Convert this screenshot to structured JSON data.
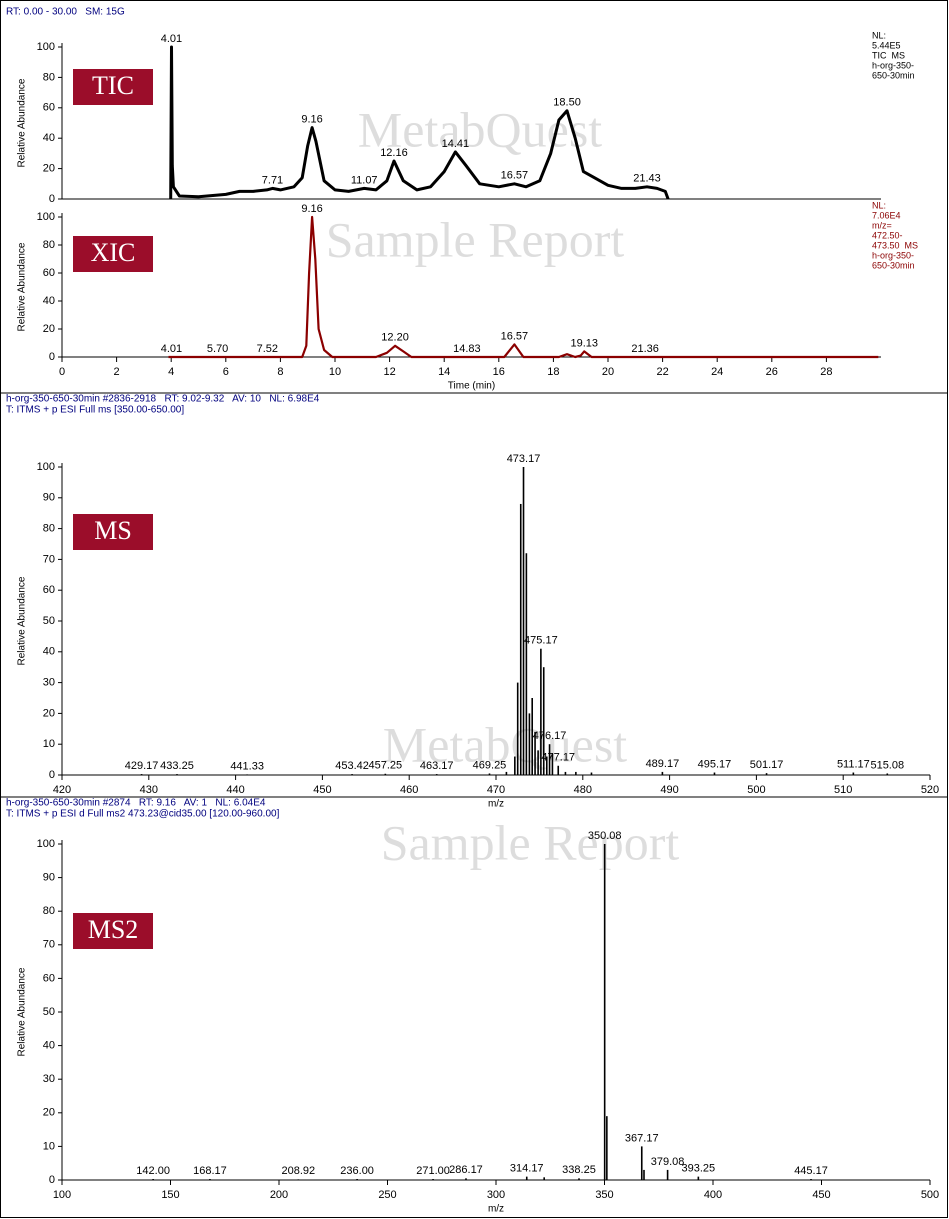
{
  "watermark": [
    "MetabQuest",
    "Sample Report"
  ],
  "chart_data": [
    {
      "type": "line",
      "header": [
        "RT: 0.00 - 30.00   SM: 15G"
      ],
      "tag": "TIC",
      "ylabel": "Relative Abundance",
      "notes": [
        "NL:",
        "5.44E5",
        "TIC  MS",
        "h-org-350-",
        "650-30min"
      ],
      "color": "#000000",
      "xlim": [
        0,
        30
      ],
      "ylim": [
        0,
        100
      ],
      "yticks": [
        0,
        20,
        40,
        60,
        80,
        100
      ],
      "x": [
        3.98,
        4.01,
        4.04,
        4.08,
        4.3,
        5,
        6,
        6.5,
        7,
        7.5,
        7.71,
        8,
        8.5,
        8.8,
        9.0,
        9.16,
        9.3,
        9.6,
        10,
        10.5,
        11.07,
        11.5,
        11.9,
        12.16,
        12.5,
        13,
        13.5,
        14,
        14.41,
        14.8,
        15.3,
        16,
        16.57,
        17,
        17.5,
        17.9,
        18.2,
        18.5,
        18.8,
        19.1,
        19.5,
        20,
        20.5,
        21,
        21.43,
        21.8,
        22.1,
        22.2
      ],
      "values": [
        0,
        100,
        22,
        8,
        2,
        1.5,
        3,
        5,
        5,
        6,
        7,
        6,
        8,
        14,
        35,
        47,
        38,
        12,
        6,
        5,
        7,
        6,
        12,
        25,
        12,
        6,
        8,
        18,
        31,
        22,
        10,
        8,
        10,
        8,
        12,
        30,
        52,
        58,
        40,
        18,
        14,
        9,
        7,
        7,
        8,
        7,
        5,
        0
      ],
      "peak_labels": [
        {
          "x": 4.01,
          "label": "4.01"
        },
        {
          "x": 7.71,
          "label": "7.71"
        },
        {
          "x": 9.16,
          "label": "9.16"
        },
        {
          "x": 11.07,
          "label": "11.07"
        },
        {
          "x": 12.16,
          "label": "12.16"
        },
        {
          "x": 14.41,
          "label": "14.41"
        },
        {
          "x": 16.57,
          "label": "16.57"
        },
        {
          "x": 18.5,
          "label": "18.50"
        },
        {
          "x": 21.43,
          "label": "21.43"
        }
      ]
    },
    {
      "type": "line",
      "tag": "XIC",
      "ylabel": "Relative Abundance",
      "xlabel": "Time (min)",
      "notes": [
        "NL:",
        "7.06E4",
        "m/z=",
        "472.50-",
        "473.50  MS",
        "h-org-350-",
        "650-30min"
      ],
      "color": "#8b0000",
      "xlim": [
        0,
        30
      ],
      "ylim": [
        0,
        100
      ],
      "yticks": [
        0,
        20,
        40,
        60,
        80,
        100
      ],
      "xticks": [
        0,
        2,
        4,
        6,
        8,
        10,
        12,
        14,
        16,
        18,
        20,
        22,
        24,
        26,
        28
      ],
      "x": [
        3.9,
        8.8,
        8.95,
        9.05,
        9.16,
        9.28,
        9.4,
        9.6,
        9.9,
        11.5,
        11.9,
        12.2,
        12.5,
        12.8,
        16.2,
        16.57,
        16.9,
        18.2,
        18.5,
        18.8,
        19.0,
        19.13,
        19.4,
        29.9
      ],
      "values": [
        0,
        0,
        8,
        60,
        100,
        70,
        20,
        5,
        0,
        0,
        3,
        8,
        4,
        0,
        0,
        9,
        0,
        0,
        2,
        0,
        1,
        4,
        0,
        0
      ],
      "peak_labels": [
        {
          "x": 4.01,
          "label": "4.01"
        },
        {
          "x": 5.7,
          "label": "5.70"
        },
        {
          "x": 7.52,
          "label": "7.52"
        },
        {
          "x": 9.16,
          "label": "9.16"
        },
        {
          "x": 12.2,
          "label": "12.20"
        },
        {
          "x": 14.83,
          "label": "14.83"
        },
        {
          "x": 16.57,
          "label": "16.57"
        },
        {
          "x": 19.13,
          "label": "19.13"
        },
        {
          "x": 21.36,
          "label": "21.36"
        }
      ]
    },
    {
      "type": "bar",
      "header": [
        "h-org-350-650-30min #2836-2918   RT: 9.02-9.32   AV: 10   NL: 6.98E4",
        "T: ITMS + p ESI Full ms [350.00-650.00]"
      ],
      "tag": "MS",
      "ylabel": "Relative Abundance",
      "xlabel": "m/z",
      "color": "#000000",
      "xlim": [
        420,
        520
      ],
      "ylim": [
        0,
        100
      ],
      "yticks": [
        0,
        10,
        20,
        30,
        40,
        50,
        60,
        70,
        80,
        90,
        100
      ],
      "xticks": [
        420,
        430,
        440,
        450,
        460,
        470,
        480,
        490,
        500,
        510,
        520
      ],
      "x": [
        429.17,
        433.25,
        441.33,
        453.42,
        457.25,
        463.17,
        469.25,
        471.2,
        472.17,
        472.5,
        472.85,
        473.17,
        473.5,
        473.85,
        474.17,
        474.5,
        474.85,
        475.17,
        475.5,
        475.85,
        476.17,
        476.5,
        477.17,
        478,
        479.2,
        481,
        489.17,
        495.17,
        501.17,
        511.17,
        515.08
      ],
      "values": [
        0.3,
        0.3,
        0.2,
        0.3,
        0.4,
        0.3,
        0.5,
        1,
        6,
        30,
        88,
        100,
        72,
        20,
        25,
        14,
        8,
        41,
        35,
        6,
        10,
        7,
        3,
        1,
        1,
        0.8,
        1,
        0.8,
        0.6,
        0.8,
        0.5
      ],
      "peak_labels": [
        {
          "x": 429.17,
          "label": "429.17"
        },
        {
          "x": 433.25,
          "label": "433.25"
        },
        {
          "x": 441.33,
          "label": "441.33"
        },
        {
          "x": 453.42,
          "label": "453.42"
        },
        {
          "x": 457.25,
          "label": "457.25"
        },
        {
          "x": 463.17,
          "label": "463.17"
        },
        {
          "x": 469.25,
          "label": "469.25"
        },
        {
          "x": 473.17,
          "label": "473.17"
        },
        {
          "x": 475.17,
          "label": "475.17"
        },
        {
          "x": 476.17,
          "label": "476.17"
        },
        {
          "x": 477.17,
          "label": "477.17"
        },
        {
          "x": 489.17,
          "label": "489.17"
        },
        {
          "x": 495.17,
          "label": "495.17"
        },
        {
          "x": 501.17,
          "label": "501.17"
        },
        {
          "x": 511.17,
          "label": "511.17"
        },
        {
          "x": 515.08,
          "label": "515.08"
        }
      ]
    },
    {
      "type": "bar",
      "header": [
        "h-org-350-650-30min #2874   RT: 9.16   AV: 1   NL: 6.04E4",
        "T: ITMS + p ESI d Full ms2 473.23@cid35.00 [120.00-960.00]"
      ],
      "tag": "MS2",
      "ylabel": "Relative Abundance",
      "xlabel": "m/z",
      "color": "#000000",
      "xlim": [
        100,
        500
      ],
      "ylim": [
        0,
        100
      ],
      "yticks": [
        0,
        10,
        20,
        30,
        40,
        50,
        60,
        70,
        80,
        90,
        100
      ],
      "xticks": [
        100,
        150,
        200,
        250,
        300,
        350,
        400,
        450,
        500
      ],
      "x": [
        142.0,
        168.17,
        208.92,
        236.0,
        271.0,
        286.17,
        314.17,
        322.2,
        338.25,
        350.08,
        351.08,
        367.17,
        368.2,
        379.08,
        393.25,
        445.17
      ],
      "values": [
        0.3,
        0.3,
        0.2,
        0.3,
        0.3,
        0.5,
        1,
        0.8,
        0.5,
        100,
        19,
        10,
        3,
        3,
        1,
        0.3
      ],
      "peak_labels": [
        {
          "x": 142.0,
          "label": "142.00"
        },
        {
          "x": 168.17,
          "label": "168.17"
        },
        {
          "x": 208.92,
          "label": "208.92"
        },
        {
          "x": 236.0,
          "label": "236.00"
        },
        {
          "x": 271.0,
          "label": "271.00"
        },
        {
          "x": 286.17,
          "label": "286.17"
        },
        {
          "x": 314.17,
          "label": "314.17"
        },
        {
          "x": 338.25,
          "label": "338.25"
        },
        {
          "x": 350.08,
          "label": "350.08"
        },
        {
          "x": 367.17,
          "label": "367.17"
        },
        {
          "x": 379.08,
          "label": "379.08"
        },
        {
          "x": 393.25,
          "label": "393.25"
        },
        {
          "x": 445.17,
          "label": "445.17"
        }
      ]
    }
  ]
}
